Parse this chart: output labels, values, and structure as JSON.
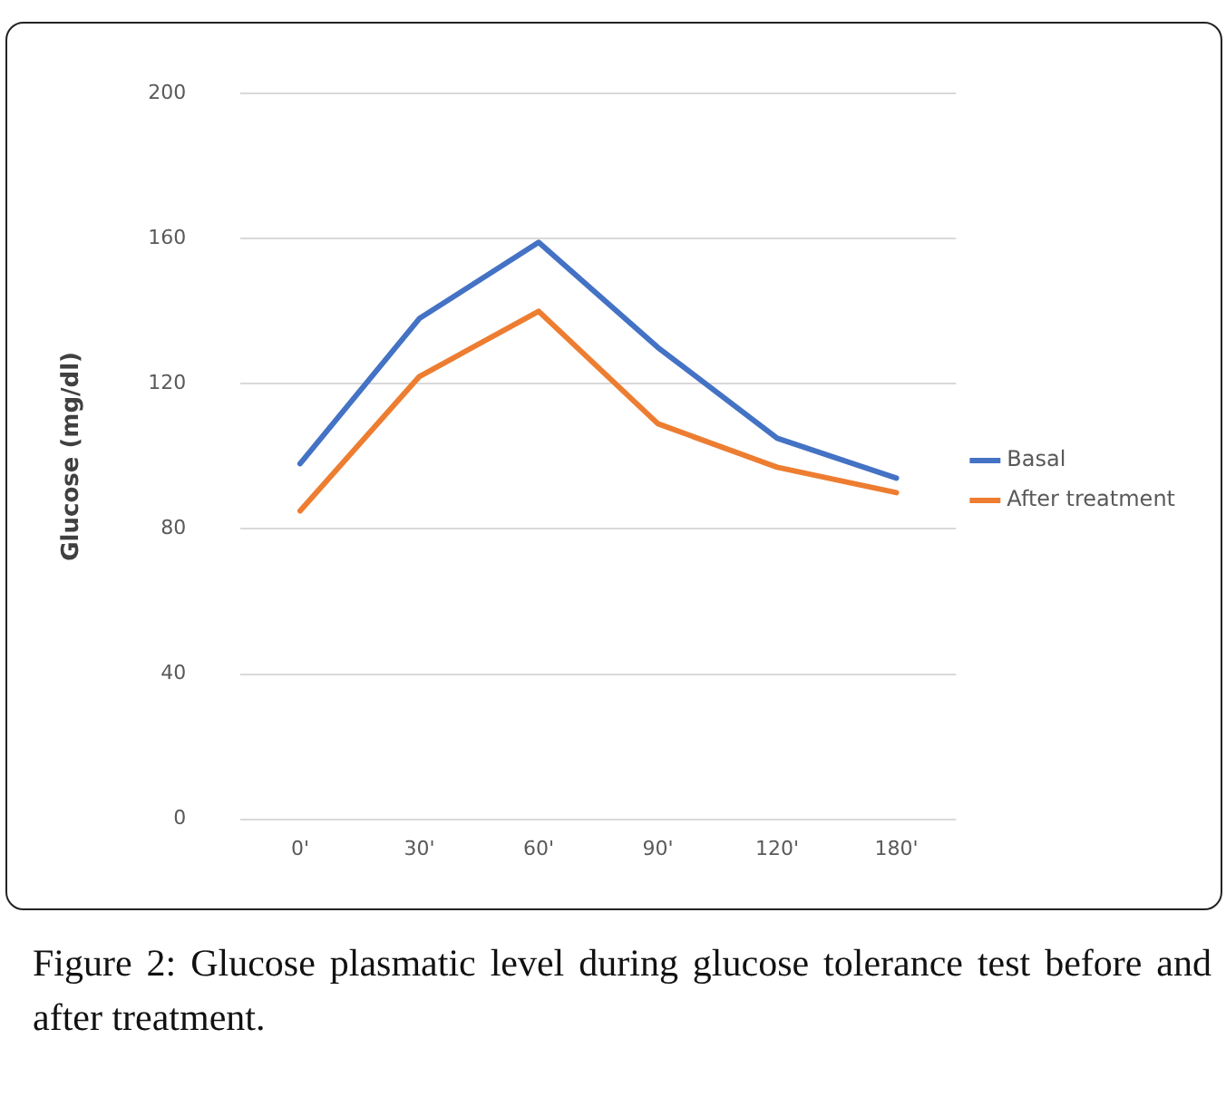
{
  "chart_data": {
    "type": "line",
    "ylabel": "Glucose (mg/dl)",
    "categories": [
      "0'",
      "30'",
      "60'",
      "90'",
      "120'",
      "180'"
    ],
    "series": [
      {
        "name": "Basal",
        "color": "#4472c4",
        "values": [
          98,
          138,
          159,
          130,
          105,
          94
        ]
      },
      {
        "name": "After treatment",
        "color": "#ed7d31",
        "values": [
          85,
          122,
          140,
          109,
          97,
          90
        ]
      }
    ],
    "ylim": [
      0,
      200
    ],
    "yticks": [
      0,
      40,
      80,
      120,
      160,
      200
    ],
    "grid": "y",
    "legend": "right",
    "marker": "none",
    "line_style": "solid",
    "annotations": [
      "Figure 2: Glucose plasmatic level during glucose tolerance test before and after treatment."
    ]
  }
}
